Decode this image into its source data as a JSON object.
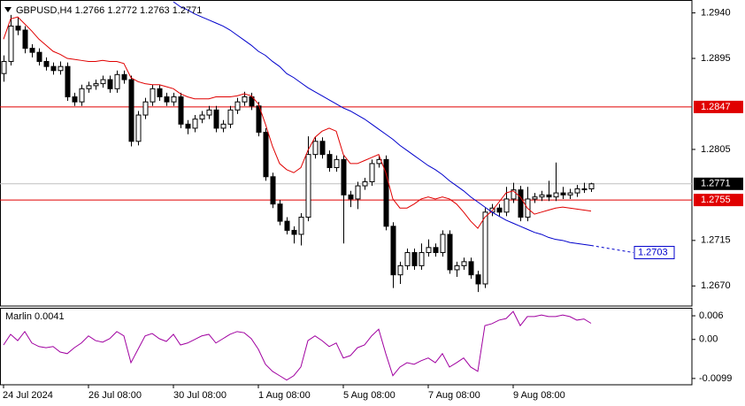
{
  "chart_data": {
    "type": "candlestick",
    "title": "GBPUSD,H4  1.2766 1.2772 1.2763 1.2771",
    "categories": [
      "24 Jul 2024",
      null,
      null,
      null,
      null,
      null,
      null,
      null,
      null,
      null,
      null,
      null,
      "26 Jul 08:00",
      null,
      null,
      null,
      null,
      null,
      null,
      null,
      null,
      null,
      null,
      null,
      "30 Jul 08:00",
      null,
      null,
      null,
      null,
      null,
      null,
      null,
      null,
      null,
      null,
      null,
      "1 Aug 08:00",
      null,
      null,
      null,
      null,
      null,
      null,
      null,
      null,
      null,
      null,
      null,
      "5 Aug 08:00",
      null,
      null,
      null,
      null,
      null,
      null,
      null,
      null,
      null,
      null,
      null,
      "7 Aug 08:00",
      null,
      null,
      null,
      null,
      null,
      null,
      null,
      null,
      null,
      null,
      null,
      "9 Aug 08:00",
      null,
      null,
      null,
      null,
      null,
      null,
      null,
      null,
      null,
      null,
      null
    ],
    "open": [
      1.288,
      1.2892,
      1.2927,
      1.2923,
      1.2905,
      1.2901,
      1.2892,
      1.2887,
      1.2883,
      1.2887,
      1.2857,
      1.2852,
      1.2865,
      1.2868,
      1.287,
      1.2874,
      1.2865,
      1.2879,
      1.2874,
      1.2813,
      1.2839,
      1.2852,
      1.2865,
      1.2857,
      1.2852,
      1.2857,
      1.283,
      1.2826,
      1.2835,
      1.2839,
      1.2844,
      1.2826,
      1.283,
      1.2844,
      1.2852,
      1.2857,
      1.2848,
      1.2822,
      1.2778,
      1.2751,
      1.2734,
      1.2725,
      1.2721,
      1.2738,
      1.28,
      1.2813,
      1.28,
      1.2787,
      1.2795,
      1.276,
      1.2756,
      1.2769,
      1.2773,
      1.2791,
      1.2795,
      1.2729,
      1.2681,
      1.269,
      1.2703,
      1.269,
      1.2703,
      1.2708,
      1.2703,
      1.2721,
      1.2686,
      1.269,
      1.2694,
      1.2681,
      1.2672,
      1.2743,
      1.2747,
      1.2743,
      1.2756,
      1.2765,
      1.2738,
      1.2756,
      1.2758,
      1.276,
      1.2758,
      1.2762,
      1.276,
      1.2762,
      1.2766,
      1.2766
    ],
    "high": [
      1.2898,
      1.2938,
      1.2936,
      1.2927,
      1.2909,
      1.2905,
      1.2896,
      1.2891,
      1.2892,
      1.2891,
      1.2861,
      1.2869,
      1.2872,
      1.2874,
      1.2878,
      1.2878,
      1.2883,
      1.2883,
      1.2878,
      1.2843,
      1.2856,
      1.2869,
      1.2869,
      1.2861,
      1.2861,
      1.2861,
      1.2834,
      1.2839,
      1.2843,
      1.2848,
      1.2848,
      1.2834,
      1.2848,
      1.2856,
      1.2862,
      1.2861,
      1.2852,
      1.2826,
      1.2782,
      1.2755,
      1.2738,
      1.2729,
      1.2742,
      1.2818,
      1.2817,
      1.2817,
      1.2804,
      1.2799,
      1.2799,
      1.2764,
      1.2773,
      1.2777,
      1.2795,
      1.2799,
      1.2799,
      1.2733,
      1.2694,
      1.2707,
      1.2707,
      1.2712,
      1.2716,
      1.2712,
      1.2725,
      1.2725,
      1.2694,
      1.2698,
      1.2698,
      1.2685,
      1.2747,
      1.2751,
      1.2751,
      1.2768,
      1.2772,
      1.2769,
      1.2768,
      1.2762,
      1.2764,
      1.2774,
      1.2792,
      1.2768,
      1.2766,
      1.277,
      1.2772,
      1.2772
    ],
    "low": [
      1.2872,
      1.2888,
      1.2918,
      1.29,
      1.2896,
      1.2888,
      1.2883,
      1.2879,
      1.2879,
      1.2853,
      1.2848,
      1.2848,
      1.2861,
      1.2864,
      1.2866,
      1.2861,
      1.2861,
      1.287,
      1.2808,
      1.2809,
      1.2835,
      1.2848,
      1.2853,
      1.2848,
      1.2848,
      1.2826,
      1.282,
      1.2822,
      1.2831,
      1.2835,
      1.2822,
      1.2822,
      1.2826,
      1.284,
      1.2848,
      1.2844,
      1.2818,
      1.2774,
      1.2747,
      1.273,
      1.2721,
      1.2712,
      1.271,
      1.2734,
      1.2796,
      1.2796,
      1.2783,
      1.2783,
      1.2712,
      1.2748,
      1.2746,
      1.2765,
      1.2769,
      1.2787,
      1.2725,
      1.2668,
      1.2672,
      1.2686,
      1.2686,
      1.2686,
      1.2699,
      1.2699,
      1.2699,
      1.2682,
      1.2679,
      1.2686,
      1.2677,
      1.2664,
      1.2668,
      1.2739,
      1.2739,
      1.2739,
      1.2752,
      1.2734,
      1.2734,
      1.2752,
      1.2754,
      1.2754,
      1.2754,
      1.2756,
      1.2756,
      1.2758,
      1.2762,
      1.2763
    ],
    "close": [
      1.2892,
      1.2927,
      1.2923,
      1.2905,
      1.2901,
      1.2892,
      1.2887,
      1.2883,
      1.2887,
      1.2857,
      1.2852,
      1.2865,
      1.2868,
      1.287,
      1.2874,
      1.2865,
      1.2879,
      1.2874,
      1.2813,
      1.2839,
      1.2852,
      1.2865,
      1.2857,
      1.2852,
      1.2857,
      1.283,
      1.2826,
      1.2835,
      1.2839,
      1.2844,
      1.2826,
      1.283,
      1.2844,
      1.2852,
      1.2857,
      1.2848,
      1.2822,
      1.2778,
      1.2751,
      1.2734,
      1.2725,
      1.2721,
      1.2738,
      1.28,
      1.2813,
      1.28,
      1.2787,
      1.2795,
      1.276,
      1.2756,
      1.2769,
      1.2773,
      1.2791,
      1.2795,
      1.2729,
      1.2681,
      1.269,
      1.2703,
      1.269,
      1.2703,
      1.2708,
      1.2703,
      1.2721,
      1.2686,
      1.269,
      1.2694,
      1.2681,
      1.2672,
      1.2743,
      1.2747,
      1.2743,
      1.2756,
      1.2765,
      1.2738,
      1.2756,
      1.2758,
      1.276,
      1.2758,
      1.2762,
      1.276,
      1.2762,
      1.2766,
      1.2766,
      1.2771
    ],
    "bull_color": "#ffffff",
    "bear_color": "#000000",
    "wick_color": "#000000",
    "ma_fast": {
      "color": "#e00000",
      "values": [
        1.2914,
        1.2934,
        1.2936,
        1.2929,
        1.2922,
        1.2914,
        1.2908,
        1.2902,
        1.2899,
        1.2895,
        1.2894,
        1.2893,
        1.2892,
        1.2892,
        1.2893,
        1.2892,
        1.2892,
        1.289,
        1.2876,
        1.2872,
        1.287,
        1.2869,
        1.2869,
        1.2867,
        1.2865,
        1.286,
        1.2857,
        1.2855,
        1.2855,
        1.2855,
        1.2857,
        1.2857,
        1.2857,
        1.2858,
        1.286,
        1.2858,
        1.285,
        1.283,
        1.2808,
        1.2791,
        1.2785,
        1.2782,
        1.2787,
        1.2804,
        1.2817,
        1.2823,
        1.2826,
        1.2823,
        1.28,
        1.2791,
        1.2791,
        1.2794,
        1.2797,
        1.28,
        1.2782,
        1.2756,
        1.2747,
        1.2747,
        1.2751,
        1.2756,
        1.2758,
        1.2756,
        1.2758,
        1.2756,
        1.2751,
        1.2743,
        1.2734,
        1.2727,
        1.2738,
        1.2744,
        1.2753,
        1.2762,
        1.2764,
        1.2758,
        1.2747,
        1.2741,
        1.2743,
        1.2745,
        1.2747,
        1.2748,
        1.2747,
        1.2746,
        1.2745,
        1.2744
      ]
    },
    "ma_slow": {
      "color": "#0000cc",
      "values": [
        null,
        null,
        null,
        null,
        null,
        null,
        null,
        null,
        null,
        null,
        null,
        null,
        null,
        null,
        null,
        null,
        null,
        null,
        null,
        null,
        null,
        null,
        null,
        null,
        1.2951,
        1.2946,
        1.2943,
        1.2939,
        1.2936,
        1.2933,
        1.293,
        1.2927,
        1.2923,
        1.2918,
        1.2913,
        1.2908,
        1.2902,
        1.2898,
        1.2892,
        1.2887,
        1.288,
        1.2876,
        1.2871,
        1.2866,
        1.2862,
        1.2858,
        1.2854,
        1.285,
        1.2846,
        1.2843,
        1.2839,
        1.2835,
        1.283,
        1.2825,
        1.282,
        1.2815,
        1.2809,
        1.2804,
        1.2799,
        1.2794,
        1.2789,
        1.2785,
        1.278,
        1.2774,
        1.2769,
        1.2764,
        1.2758,
        1.2753,
        1.2748,
        1.2743,
        1.2739,
        1.2735,
        1.2732,
        1.2729,
        1.2726,
        1.2723,
        1.2721,
        1.2718,
        1.2716,
        1.2715,
        1.2713,
        1.2712,
        1.2711,
        1.271
      ],
      "projection": 1.2703
    },
    "ylim": [
      1.2651,
      1.2951
    ],
    "yticks": [
      {
        "value": 1.294,
        "label": "1.2940"
      },
      1.2895,
      1.2805,
      1.2715,
      {
        "value": 1.267,
        "label": "1.2670"
      }
    ],
    "levels": [
      {
        "value": 1.2847,
        "color": "#e00000"
      },
      {
        "value": 1.2755,
        "color": "#e00000"
      }
    ],
    "last_price": 1.2771,
    "indicator": {
      "title": "Marlin 0.0041",
      "color": "#a000a0",
      "values": [
        -0.0014,
        0.0013,
        -0.0003,
        0.002,
        -0.0009,
        -0.0018,
        -0.0021,
        -0.0018,
        -0.0032,
        -0.0036,
        -0.0021,
        -0.0009,
        0.0009,
        -0.0003,
        -0.0007,
        0.0002,
        0.002,
        0.0009,
        -0.0059,
        -0.0025,
        0.0009,
        0.0015,
        0.0002,
        -0.0005,
        0.0013,
        -0.0014,
        -0.0009,
        0,
        0.0009,
        0.0013,
        -0.0009,
        0.0002,
        0.0013,
        0.002,
        0.0017,
        0.0002,
        -0.0025,
        -0.0063,
        -0.0081,
        -0.0092,
        -0.0103,
        -0.0092,
        -0.007,
        -0.0003,
        0.0009,
        -0.0003,
        -0.0018,
        -0.0009,
        -0.0047,
        -0.0041,
        -0.0021,
        -0.0014,
        0.0009,
        0.0026,
        -0.0036,
        -0.0092,
        -0.007,
        -0.0059,
        -0.0063,
        -0.0054,
        -0.0047,
        -0.0059,
        -0.0036,
        -0.007,
        -0.0059,
        -0.0047,
        -0.007,
        -0.0081,
        0.0035,
        0.004,
        0.0049,
        0.0053,
        0.0071,
        0.0035,
        0.0058,
        0.0058,
        0.0062,
        0.0058,
        0.0058,
        0.0062,
        0.0058,
        0.0049,
        0.0052,
        0.0041
      ],
      "ylim": [
        -0.0115,
        0.0078
      ],
      "yticks": [
        0.006,
        {
          "value": 0,
          "label": "0.00"
        },
        -0.0099
      ]
    }
  }
}
